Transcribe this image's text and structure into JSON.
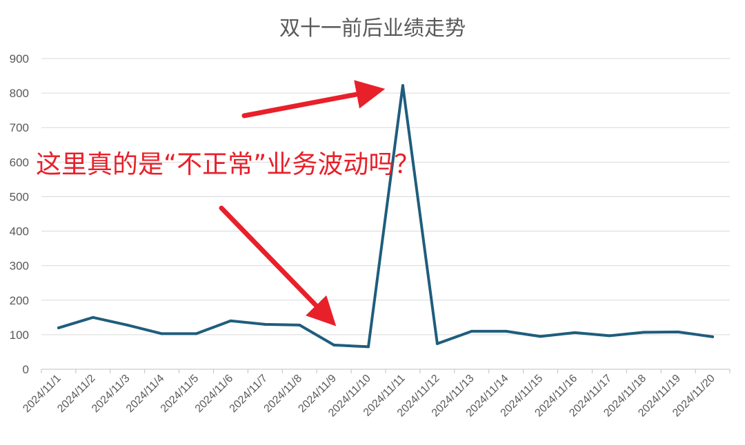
{
  "chart_data": {
    "type": "line",
    "title": "双十一前后业绩走势",
    "categories": [
      "2024/11/1",
      "2024/11/2",
      "2024/11/3",
      "2024/11/4",
      "2024/11/5",
      "2024/11/6",
      "2024/11/7",
      "2024/11/8",
      "2024/11/9",
      "2024/11/10",
      "2024/11/11",
      "2024/11/12",
      "2024/11/13",
      "2024/11/14",
      "2024/11/15",
      "2024/11/16",
      "2024/11/17",
      "2024/11/18",
      "2024/11/19",
      "2024/11/20"
    ],
    "series": [
      {
        "values": [
          120,
          150,
          128,
          103,
          103,
          140,
          130,
          128,
          70,
          65,
          822,
          74,
          110,
          110,
          95,
          106,
          97,
          107,
          108,
          94
        ]
      }
    ],
    "ylim": [
      0,
      900
    ],
    "yticks": [
      "0",
      "100",
      "200",
      "300",
      "400",
      "500",
      "600",
      "700",
      "800",
      "900"
    ],
    "grid": true,
    "line_color": "#1f5d7d",
    "annotation": {
      "text": "这里真的是“不正常”业务波动吗？",
      "color": "#e8202a"
    }
  }
}
